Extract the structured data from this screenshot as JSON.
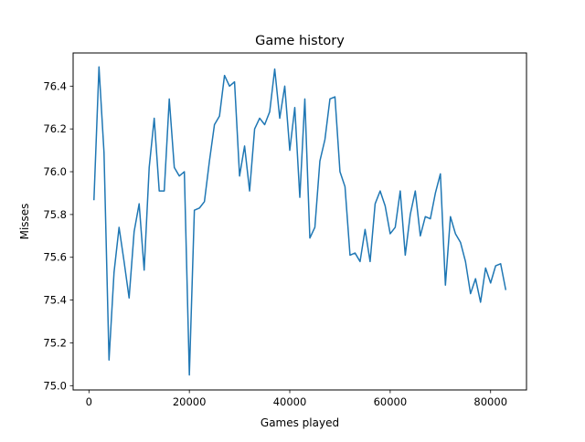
{
  "chart_data": {
    "type": "line",
    "title": "Game history",
    "xlabel": "Games played",
    "ylabel": "Misses",
    "xlim": [
      -3150,
      87150
    ],
    "ylim": [
      74.98,
      76.555
    ],
    "xticks": [
      0,
      20000,
      40000,
      60000,
      80000
    ],
    "xtick_labels": [
      "0",
      "20000",
      "40000",
      "60000",
      "80000"
    ],
    "yticks": [
      75.0,
      75.2,
      75.4,
      75.6,
      75.8,
      76.0,
      76.2,
      76.4
    ],
    "ytick_labels": [
      "75.0",
      "75.2",
      "75.4",
      "75.6",
      "75.8",
      "76.0",
      "76.2",
      "76.4"
    ],
    "grid": false,
    "color": "#1f77b4",
    "series": [
      {
        "x": [
          1000,
          2000,
          3000,
          4000,
          5000,
          6000,
          7000,
          8000,
          9000,
          10000,
          11000,
          12000,
          13000,
          14000,
          15000,
          16000,
          17000,
          18000,
          19000,
          20000,
          21000,
          22000,
          23000,
          24000,
          25000,
          26000,
          27000,
          28000,
          29000,
          30000,
          31000,
          32000,
          33000,
          34000,
          35000,
          36000,
          37000,
          38000,
          39000,
          40000,
          41000,
          42000,
          43000,
          44000,
          45000,
          46000,
          47000,
          48000,
          49000,
          50000,
          51000,
          52000,
          53000,
          54000,
          55000,
          56000,
          57000,
          58000,
          59000,
          60000,
          61000,
          62000,
          63000,
          64000,
          65000,
          66000,
          67000,
          68000,
          69000,
          70000,
          71000,
          72000,
          73000,
          74000,
          75000,
          76000,
          77000,
          78000,
          79000,
          80000,
          81000,
          82000,
          83000
        ],
        "y": [
          75.87,
          76.49,
          76.09,
          75.12,
          75.53,
          75.74,
          75.58,
          75.41,
          75.72,
          75.85,
          75.54,
          76.02,
          76.25,
          75.91,
          75.91,
          76.34,
          76.02,
          75.98,
          76.0,
          75.05,
          75.82,
          75.83,
          75.86,
          76.05,
          76.22,
          76.26,
          76.45,
          76.4,
          76.42,
          75.98,
          76.12,
          75.91,
          76.2,
          76.25,
          76.22,
          76.28,
          76.48,
          76.25,
          76.4,
          76.1,
          76.3,
          75.88,
          76.34,
          75.69,
          75.74,
          76.05,
          76.15,
          76.34,
          76.35,
          76.0,
          75.93,
          75.61,
          75.62,
          75.58,
          75.73,
          75.58,
          75.85,
          75.91,
          75.84,
          75.71,
          75.74,
          75.91,
          75.61,
          75.8,
          75.91,
          75.7,
          75.79,
          75.78,
          75.9,
          75.99,
          75.47,
          75.79,
          75.71,
          75.67,
          75.58,
          75.43,
          75.5,
          75.39,
          75.55,
          75.48,
          75.56,
          75.57,
          75.45
        ]
      }
    ]
  }
}
